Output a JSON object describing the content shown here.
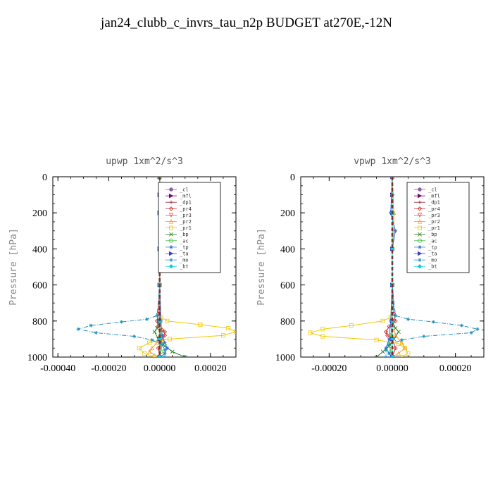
{
  "title": "jan24_clubb_c_invrs_tau_n2p  BUDGET at270E,-12N",
  "chart_data": [
    {
      "type": "line",
      "title": "upwp   1xm^2/s^3",
      "ylabel": "Pressure [hPa]",
      "xlabel": "",
      "xlim": [
        -0.00042,
        0.0003
      ],
      "ylim": [
        1000,
        0
      ],
      "xticks": [
        -0.0004,
        -0.0002,
        0,
        0.0002
      ],
      "xtick_labels": [
        "-0.00040",
        "-0.00020",
        "0.00000",
        "0.00020"
      ],
      "yticks": [
        0,
        200,
        400,
        600,
        800,
        1000
      ],
      "ytick_labels": [
        "0",
        "200",
        "400",
        "600",
        "800",
        "1000"
      ],
      "legend_position": "top-right",
      "series": [
        {
          "name": "_cl",
          "color": "#8a5fa0",
          "marker": "circle",
          "dash": "",
          "x": [
            0,
            0,
            0,
            0,
            0,
            0,
            0,
            0
          ],
          "y": [
            0,
            100,
            200,
            400,
            600,
            800,
            900,
            1000
          ]
        },
        {
          "name": "_mfl",
          "color": "#800080",
          "marker": "triangle-right",
          "dash": "",
          "x": [
            0,
            0,
            0,
            0,
            0,
            0,
            0,
            0
          ],
          "y": [
            0,
            100,
            200,
            400,
            600,
            800,
            900,
            1000
          ]
        },
        {
          "name": "_dp1",
          "color": "#a0203a",
          "marker": "plus",
          "dash": "",
          "x": [
            0,
            0,
            0,
            0,
            0,
            0,
            0,
            0
          ],
          "y": [
            0,
            100,
            200,
            400,
            600,
            800,
            900,
            1000
          ]
        },
        {
          "name": "_pr4",
          "color": "#cc2a2a",
          "marker": "diamond",
          "dash": "",
          "x": [
            0,
            0,
            0,
            0,
            -5e-06,
            -1e-05,
            -6e-06,
            1e-05,
            2e-05,
            2e-05,
            1e-05,
            -5e-06,
            0
          ],
          "y": [
            0,
            200,
            400,
            600,
            760,
            800,
            830,
            850,
            860,
            880,
            900,
            950,
            1000
          ]
        },
        {
          "name": "_pr3",
          "color": "#e05050",
          "marker": "triangle-down",
          "dash": "",
          "x": [
            0,
            0,
            0,
            0,
            0,
            0,
            0
          ],
          "y": [
            0,
            200,
            400,
            600,
            800,
            900,
            1000
          ]
        },
        {
          "name": "_pr2",
          "color": "#f0a030",
          "marker": "triangle-up",
          "dash": "",
          "x": [
            0,
            0,
            0,
            0,
            0,
            0,
            -1e-05,
            -3e-05,
            -4e-05,
            -2e-05,
            0
          ],
          "y": [
            0,
            200,
            400,
            600,
            800,
            880,
            920,
            950,
            970,
            990,
            1000
          ]
        },
        {
          "name": "_pr1",
          "color": "#f2c800",
          "marker": "square",
          "dash": "",
          "x": [
            0,
            0,
            0,
            0,
            5e-06,
            3e-05,
            0.00016,
            0.00027,
            0.0003,
            0.00025,
            4e-05,
            -4e-05,
            -8e-05,
            -6e-05,
            -2e-05
          ],
          "y": [
            0,
            200,
            400,
            600,
            780,
            800,
            820,
            840,
            860,
            880,
            900,
            920,
            950,
            980,
            1000
          ]
        },
        {
          "name": "_bp",
          "color": "#208020",
          "marker": "x",
          "dash": "",
          "x": [
            0,
            0,
            0,
            0,
            0,
            -1e-05,
            -2e-05,
            -5e-06,
            2e-05,
            5e-05,
            0.0001
          ],
          "y": [
            0,
            200,
            400,
            600,
            800,
            840,
            860,
            900,
            940,
            970,
            1000
          ]
        },
        {
          "name": "_ac",
          "color": "#40c040",
          "marker": "circle-open",
          "dash": "",
          "x": [
            0,
            0,
            0,
            0,
            0,
            5e-06,
            1e-05,
            5e-06,
            0
          ],
          "y": [
            0,
            200,
            400,
            600,
            800,
            880,
            930,
            970,
            1000
          ]
        },
        {
          "name": "_tp",
          "color": "#3070d0",
          "marker": "star",
          "dash": "",
          "x": [
            0,
            0,
            0,
            0,
            5e-06,
            1e-05,
            2e-05,
            3e-05,
            2e-05,
            5e-06
          ],
          "y": [
            0,
            200,
            400,
            600,
            800,
            880,
            920,
            950,
            980,
            1000
          ]
        },
        {
          "name": "_ta",
          "color": "#4040d0",
          "marker": "triangle-right",
          "dash": "",
          "x": [
            0,
            0,
            0,
            0,
            0,
            0,
            0
          ],
          "y": [
            0,
            200,
            400,
            600,
            800,
            900,
            1000
          ]
        },
        {
          "name": "_mo",
          "color": "#2090c0",
          "marker": "star",
          "dash": "dashdot",
          "x": [
            0,
            0,
            0,
            0,
            -1e-05,
            -5e-05,
            -0.00015,
            -0.00027,
            -0.00032,
            -0.00025,
            -0.0001,
            -3e-05,
            1e-05,
            2e-05,
            2e-05
          ],
          "y": [
            0,
            200,
            400,
            600,
            770,
            790,
            805,
            825,
            845,
            865,
            885,
            905,
            930,
            960,
            1000
          ]
        },
        {
          "name": "_bt",
          "color": "#00d0e0",
          "marker": "diamond-filled",
          "dash": "",
          "x": [
            0,
            0,
            0,
            0,
            0,
            0,
            0,
            0
          ],
          "y": [
            0,
            100,
            200,
            400,
            600,
            800,
            900,
            1000
          ]
        },
        {
          "name": "",
          "color": "#7b3030",
          "marker": "none",
          "dash": "dashed",
          "x": [
            0,
            0
          ],
          "y": [
            0,
            1000
          ]
        }
      ]
    },
    {
      "type": "line",
      "title": "vpwp   1xm^2/s^3",
      "ylabel": "Pressure [hPa]",
      "xlabel": "",
      "xlim": [
        -0.00029,
        0.00029
      ],
      "ylim": [
        1000,
        0
      ],
      "xticks": [
        -0.0002,
        0,
        0.0002
      ],
      "xtick_labels": [
        "-0.00020",
        "0.00000",
        "0.00020"
      ],
      "yticks": [
        0,
        200,
        400,
        600,
        800,
        1000
      ],
      "ytick_labels": [
        "0",
        "200",
        "400",
        "600",
        "800",
        "1000"
      ],
      "legend_position": "top-right",
      "series": [
        {
          "name": "_cl",
          "color": "#8a5fa0",
          "marker": "circle",
          "dash": "",
          "x": [
            0,
            0,
            0,
            0,
            0,
            0,
            0,
            0
          ],
          "y": [
            0,
            100,
            200,
            400,
            600,
            800,
            900,
            1000
          ]
        },
        {
          "name": "_mfl",
          "color": "#800080",
          "marker": "triangle-right",
          "dash": "",
          "x": [
            0,
            0,
            0,
            0,
            0,
            0,
            0,
            0
          ],
          "y": [
            0,
            100,
            200,
            400,
            600,
            800,
            900,
            1000
          ]
        },
        {
          "name": "_dp1",
          "color": "#a0203a",
          "marker": "plus",
          "dash": "",
          "x": [
            0,
            0,
            0,
            0,
            0,
            0,
            0,
            0
          ],
          "y": [
            0,
            100,
            200,
            400,
            600,
            800,
            900,
            1000
          ]
        },
        {
          "name": "_pr4",
          "color": "#cc2a2a",
          "marker": "diamond",
          "dash": "",
          "x": [
            0,
            0,
            0,
            0,
            5e-06,
            1e-05,
            -1e-05,
            -2e-05,
            -1.5e-05,
            0,
            1e-05,
            0
          ],
          "y": [
            0,
            200,
            400,
            600,
            760,
            800,
            830,
            860,
            880,
            900,
            950,
            1000
          ]
        },
        {
          "name": "_pr3",
          "color": "#e05050",
          "marker": "triangle-down",
          "dash": "",
          "x": [
            0,
            0,
            0,
            0,
            0,
            0,
            0
          ],
          "y": [
            0,
            200,
            400,
            600,
            800,
            900,
            1000
          ]
        },
        {
          "name": "_pr2",
          "color": "#f0a030",
          "marker": "triangle-up",
          "dash": "",
          "x": [
            0,
            5e-06,
            5e-06,
            0,
            0,
            0,
            1e-05,
            3e-05,
            4e-05,
            2e-05,
            0
          ],
          "y": [
            0,
            200,
            300,
            400,
            600,
            800,
            880,
            920,
            950,
            980,
            1000
          ]
        },
        {
          "name": "_pr1",
          "color": "#f2c800",
          "marker": "square",
          "dash": "",
          "x": [
            0,
            0,
            0,
            0,
            -5e-06,
            -3e-05,
            -0.00013,
            -0.00022,
            -0.00026,
            -0.00022,
            -5e-05,
            2e-05,
            4e-05,
            5e-05,
            3e-05
          ],
          "y": [
            0,
            200,
            400,
            600,
            780,
            800,
            825,
            845,
            865,
            885,
            905,
            925,
            950,
            980,
            1000
          ]
        },
        {
          "name": "_bp",
          "color": "#208020",
          "marker": "x",
          "dash": "",
          "x": [
            0,
            0,
            0,
            0,
            0,
            1e-05,
            2e-05,
            5e-06,
            -1e-05,
            -3e-05,
            -5e-05
          ],
          "y": [
            0,
            200,
            400,
            600,
            800,
            840,
            860,
            900,
            940,
            970,
            1000
          ]
        },
        {
          "name": "_ac",
          "color": "#40c040",
          "marker": "circle-open",
          "dash": "",
          "x": [
            0,
            0,
            0,
            0,
            0,
            -5e-06,
            -1e-05,
            -5e-06,
            0
          ],
          "y": [
            0,
            200,
            400,
            600,
            800,
            880,
            930,
            970,
            1000
          ]
        },
        {
          "name": "_tp",
          "color": "#3070d0",
          "marker": "star",
          "dash": "",
          "x": [
            0,
            -5e-06,
            1e-05,
            0,
            0,
            -5e-06,
            -1e-05,
            -2e-05,
            -1e-05,
            0
          ],
          "y": [
            0,
            200,
            300,
            400,
            600,
            800,
            900,
            950,
            980,
            1000
          ]
        },
        {
          "name": "_ta",
          "color": "#4040d0",
          "marker": "triangle-right",
          "dash": "",
          "x": [
            0,
            0,
            0,
            0,
            0,
            0,
            0
          ],
          "y": [
            0,
            200,
            400,
            600,
            800,
            900,
            1000
          ]
        },
        {
          "name": "_mo",
          "color": "#2090c0",
          "marker": "star",
          "dash": "dashdot",
          "x": [
            0,
            0,
            0,
            0,
            1e-05,
            5e-05,
            0.00013,
            0.00022,
            0.00027,
            0.00025,
            0.0001,
            3e-05,
            -1e-05,
            -2e-05,
            -2e-05
          ],
          "y": [
            0,
            200,
            400,
            600,
            770,
            790,
            805,
            825,
            845,
            865,
            885,
            905,
            930,
            960,
            1000
          ]
        },
        {
          "name": "_bt",
          "color": "#00d0e0",
          "marker": "diamond-filled",
          "dash": "",
          "x": [
            0,
            0,
            0,
            0,
            0,
            0,
            0,
            0
          ],
          "y": [
            0,
            100,
            200,
            400,
            600,
            800,
            900,
            1000
          ]
        },
        {
          "name": "",
          "color": "#7b3030",
          "marker": "none",
          "dash": "dashed",
          "x": [
            0,
            0
          ],
          "y": [
            0,
            1000
          ]
        }
      ]
    }
  ]
}
